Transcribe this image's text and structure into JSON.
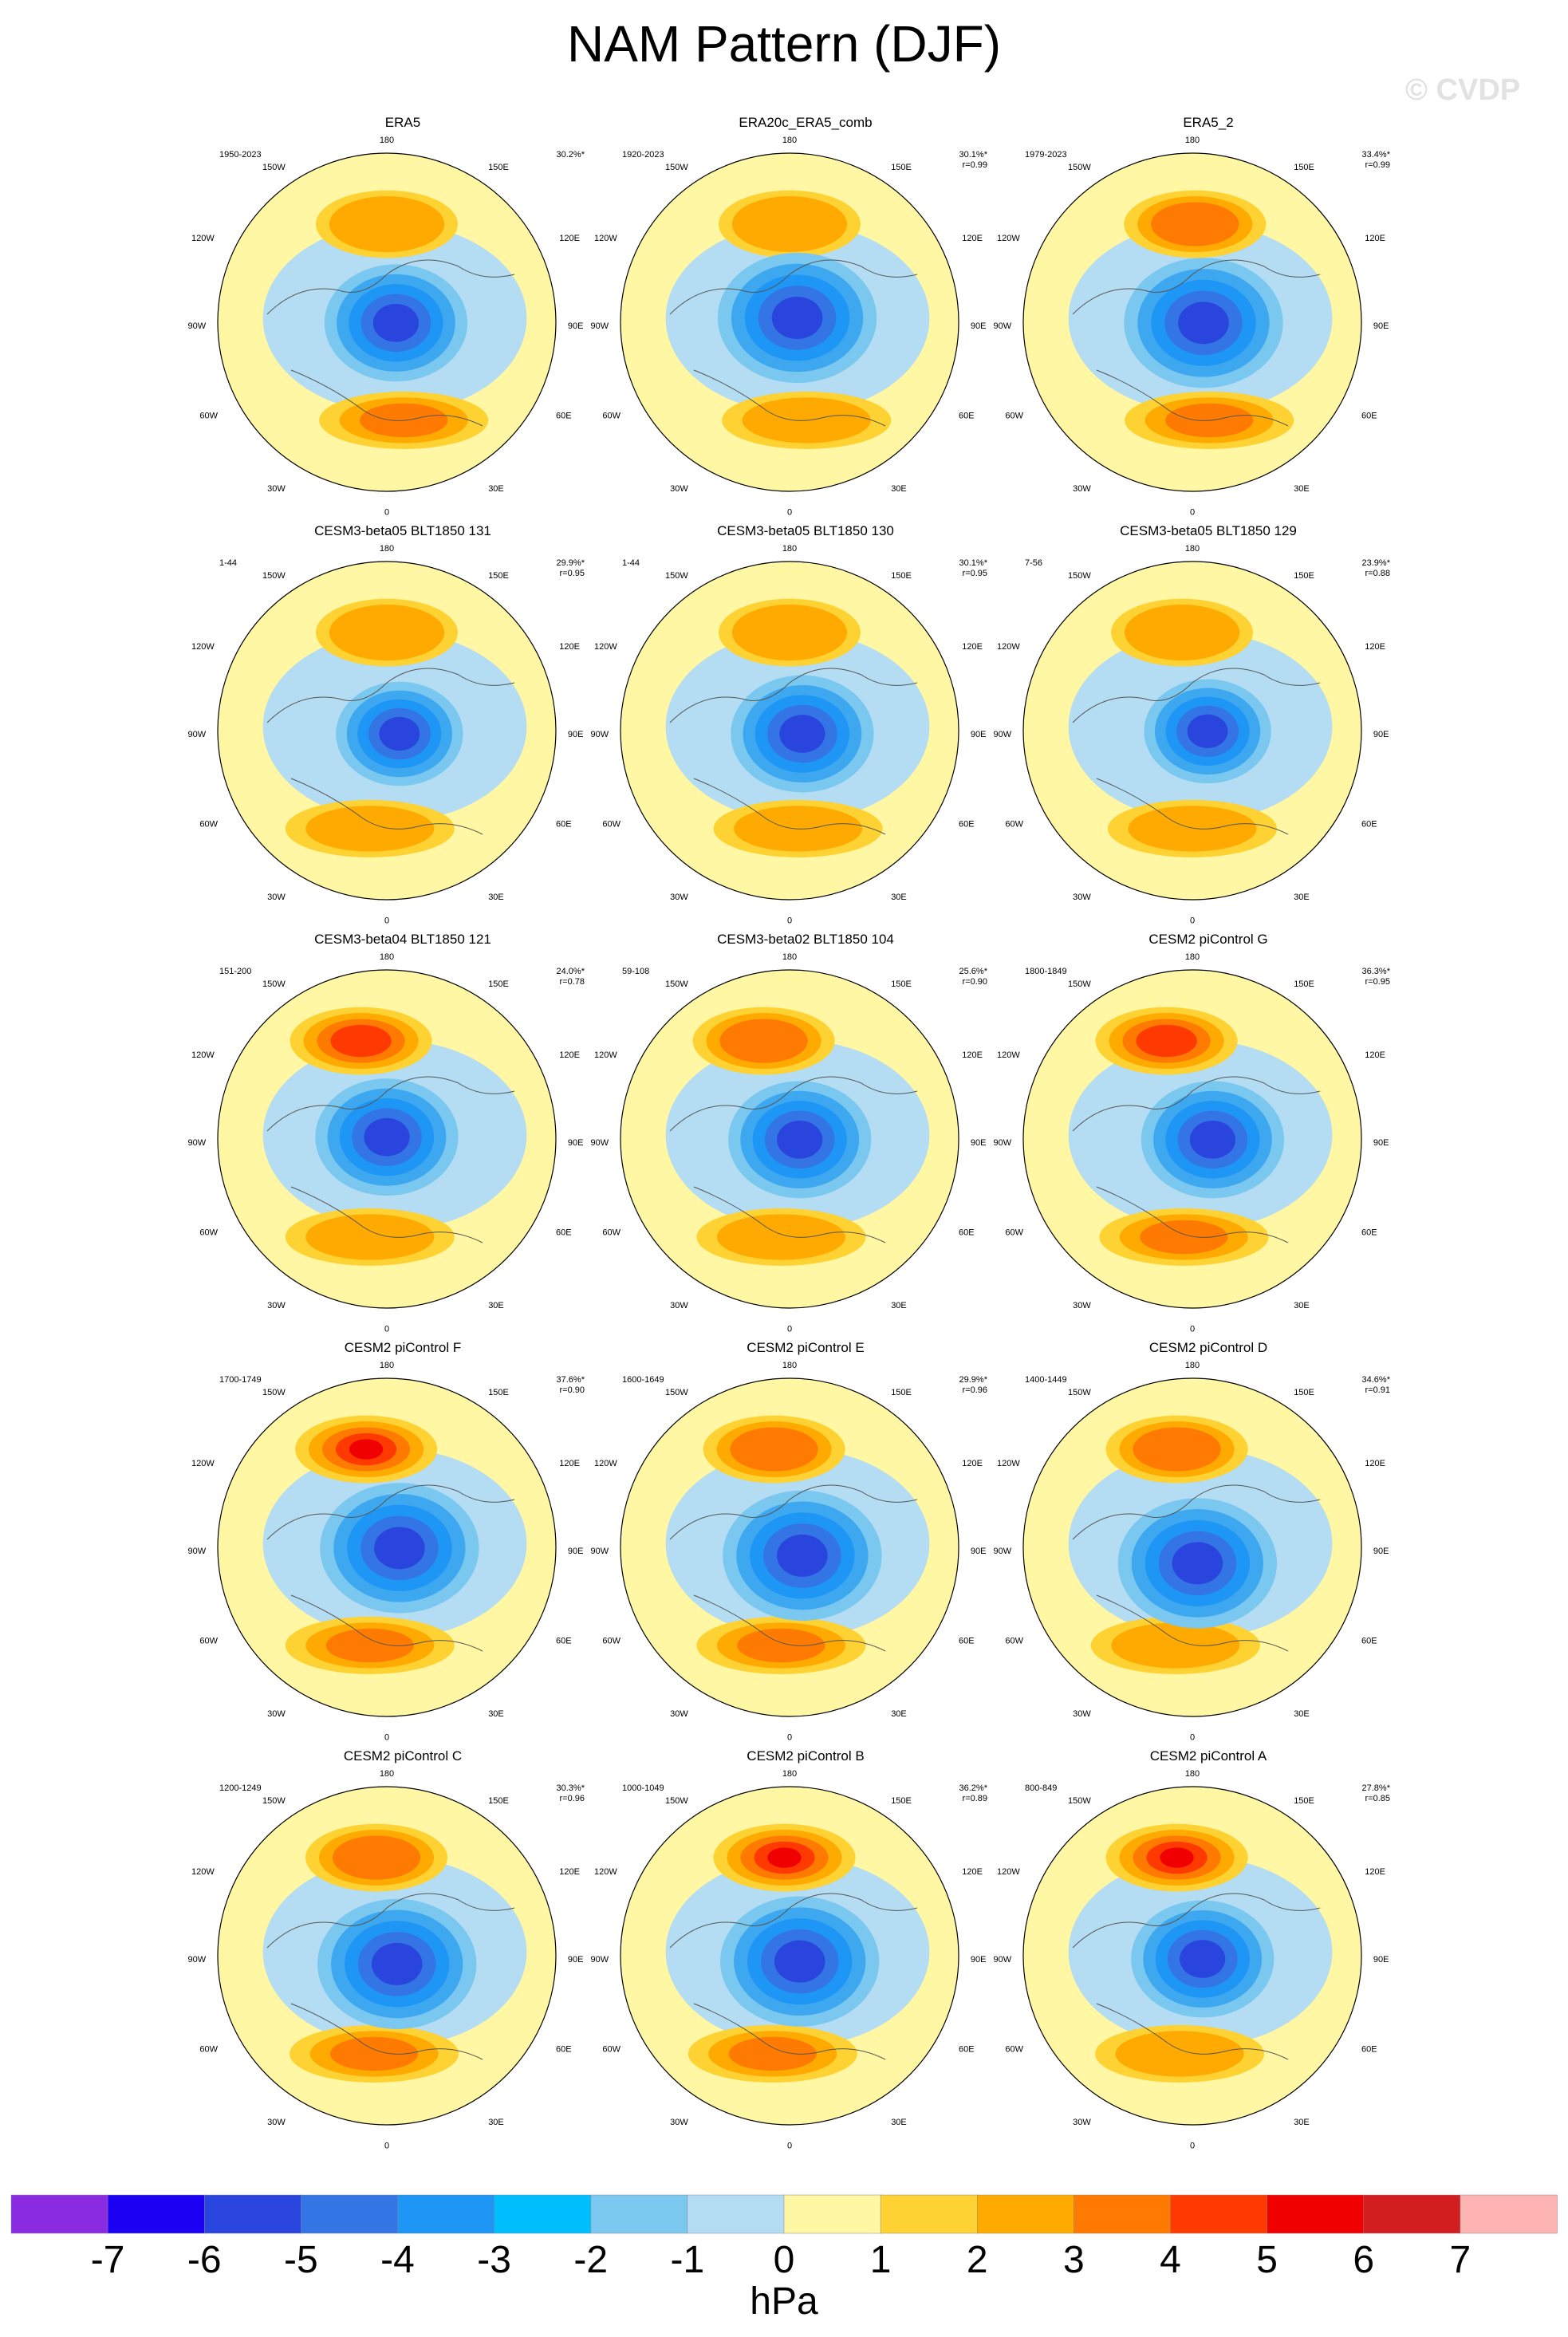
{
  "title": "NAM Pattern (DJF)",
  "watermark": "© CVDP",
  "units": "hPa",
  "lon_labels": {
    "top": "180",
    "bottom": "0",
    "l1": "150W",
    "r1": "150E",
    "l2": "120W",
    "r2": "120E",
    "l3": "90W",
    "r3": "90E",
    "l4": "60W",
    "r4": "60E",
    "l5": "30W",
    "r5": "30E"
  },
  "colorbar": {
    "colors": [
      "#8a2be2",
      "#1b00f3",
      "#2a45dd",
      "#3475e6",
      "#1e96f5",
      "#00bfff",
      "#7ac8ef",
      "#b4dcf2",
      "#fff7a3",
      "#fed233",
      "#ffaa00",
      "#ff7a00",
      "#ff3a00",
      "#f00000",
      "#d21e1e",
      "#ffb4b4"
    ],
    "labels": [
      "-7",
      "-6",
      "-5",
      "-4",
      "-3",
      "-2",
      "-1",
      "0",
      "1",
      "2",
      "3",
      "4",
      "5",
      "6",
      "7"
    ]
  },
  "panels": [
    {
      "title": "ERA5",
      "period": "1950-2023",
      "pct": "30.2%*",
      "r": ""
    },
    {
      "title": "ERA20c_ERA5_comb",
      "period": "1920-2023",
      "pct": "30.1%*",
      "r": "r=0.99"
    },
    {
      "title": "ERA5_2",
      "period": "1979-2023",
      "pct": "33.4%*",
      "r": "r=0.99"
    },
    {
      "title": "CESM3-beta05 BLT1850 131",
      "period": "1-44",
      "pct": "29.9%*",
      "r": "r=0.95"
    },
    {
      "title": "CESM3-beta05 BLT1850 130",
      "period": "1-44",
      "pct": "30.1%*",
      "r": "r=0.95"
    },
    {
      "title": "CESM3-beta05 BLT1850 129",
      "period": "7-56",
      "pct": "23.9%*",
      "r": "r=0.88"
    },
    {
      "title": "CESM3-beta04 BLT1850 121",
      "period": "151-200",
      "pct": "24.0%*",
      "r": "r=0.78"
    },
    {
      "title": "CESM3-beta02 BLT1850 104",
      "period": "59-108",
      "pct": "25.6%*",
      "r": "r=0.90"
    },
    {
      "title": "CESM2 piControl G",
      "period": "1800-1849",
      "pct": "36.3%*",
      "r": "r=0.95"
    },
    {
      "title": "CESM2 piControl F",
      "period": "1700-1749",
      "pct": "37.6%*",
      "r": "r=0.90"
    },
    {
      "title": "CESM2 piControl E",
      "period": "1600-1649",
      "pct": "29.9%*",
      "r": "r=0.96"
    },
    {
      "title": "CESM2 piControl D",
      "period": "1400-1449",
      "pct": "34.6%*",
      "r": "r=0.91"
    },
    {
      "title": "CESM2 piControl C",
      "period": "1200-1249",
      "pct": "30.3%*",
      "r": "r=0.96"
    },
    {
      "title": "CESM2 piControl B",
      "period": "1000-1049",
      "pct": "36.2%*",
      "r": "r=0.89"
    },
    {
      "title": "CESM2 piControl A",
      "period": "800-849",
      "pct": "27.8%*",
      "r": "r=0.85"
    }
  ]
}
